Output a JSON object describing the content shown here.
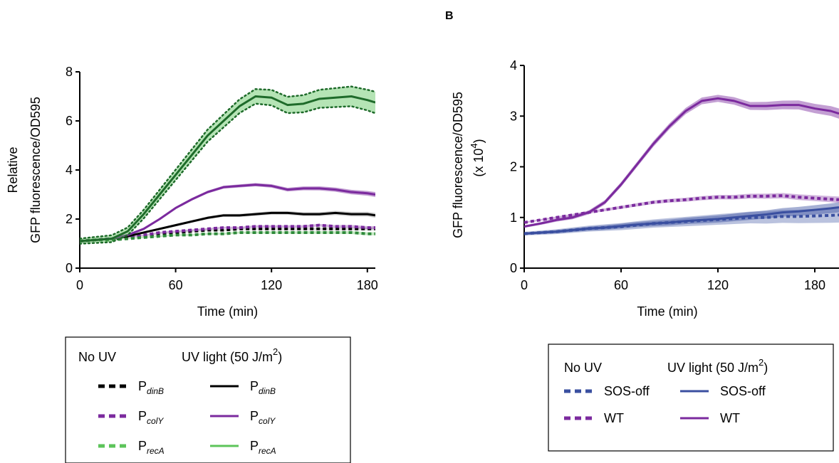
{
  "chart_data": [
    {
      "type": "line",
      "panel_label": "",
      "title": "",
      "xlabel": "Time (min)",
      "ylabel_lines": [
        "Relative",
        "GFP fluorescence/OD595"
      ],
      "xlim": [
        0,
        185
      ],
      "ylim": [
        0,
        8
      ],
      "xticks": [
        0,
        60,
        120,
        180
      ],
      "yticks": [
        0,
        2,
        4,
        6,
        8
      ],
      "grid": false,
      "legend": {
        "placement": "below",
        "col_headers": [
          {
            "text": "No UV",
            "sup": ""
          },
          {
            "text": "UV light (50 J/m",
            "sup": "2",
            "tail": ")"
          }
        ],
        "entries": [
          {
            "no_uv": {
              "base": "P",
              "sub": "dinB"
            },
            "uv": {
              "base": "P",
              "sub": "dinB"
            }
          },
          {
            "no_uv": {
              "base": "P",
              "sub": "colY"
            },
            "uv": {
              "base": "P",
              "sub": "colY"
            }
          },
          {
            "no_uv": {
              "base": "P",
              "sub": "recA"
            },
            "uv": {
              "base": "P",
              "sub": "recA"
            }
          }
        ]
      },
      "x": [
        0,
        10,
        20,
        30,
        40,
        50,
        60,
        70,
        80,
        90,
        100,
        110,
        120,
        130,
        140,
        150,
        160,
        170,
        180,
        185
      ],
      "series": [
        {
          "name": "PdinB",
          "condition": "No UV",
          "style": "dashed",
          "color": "#000000",
          "values": [
            1.1,
            1.15,
            1.2,
            1.25,
            1.3,
            1.4,
            1.45,
            1.5,
            1.55,
            1.55,
            1.6,
            1.6,
            1.6,
            1.6,
            1.6,
            1.6,
            1.6,
            1.6,
            1.6,
            1.6
          ]
        },
        {
          "name": "PcolY",
          "condition": "No UV",
          "style": "dashed",
          "color": "#7b2a9e",
          "values": [
            1.1,
            1.15,
            1.2,
            1.25,
            1.35,
            1.45,
            1.5,
            1.55,
            1.6,
            1.65,
            1.65,
            1.7,
            1.7,
            1.7,
            1.7,
            1.75,
            1.7,
            1.7,
            1.65,
            1.65
          ]
        },
        {
          "name": "PrecA",
          "condition": "No UV",
          "style": "dashed",
          "color": "#2f8a3b",
          "values": [
            1.1,
            1.15,
            1.15,
            1.2,
            1.25,
            1.3,
            1.35,
            1.35,
            1.4,
            1.4,
            1.45,
            1.45,
            1.45,
            1.45,
            1.45,
            1.45,
            1.45,
            1.45,
            1.4,
            1.4
          ]
        },
        {
          "name": "PdinB",
          "condition": "UV light",
          "style": "solid",
          "color": "#000000",
          "values": [
            1.1,
            1.15,
            1.2,
            1.3,
            1.45,
            1.6,
            1.75,
            1.9,
            2.05,
            2.15,
            2.15,
            2.2,
            2.25,
            2.25,
            2.2,
            2.2,
            2.25,
            2.2,
            2.2,
            2.15
          ]
        },
        {
          "name": "PcolY",
          "condition": "UV light",
          "style": "solid",
          "color": "#7b2a9e",
          "values": [
            1.1,
            1.15,
            1.2,
            1.35,
            1.6,
            2.0,
            2.45,
            2.8,
            3.1,
            3.3,
            3.35,
            3.4,
            3.35,
            3.2,
            3.25,
            3.25,
            3.2,
            3.1,
            3.05,
            3.0
          ]
        },
        {
          "name": "PrecA",
          "condition": "UV light",
          "style": "solid",
          "color": "#1e6b2a",
          "values": [
            1.1,
            1.15,
            1.2,
            1.5,
            2.2,
            3.0,
            3.8,
            4.6,
            5.4,
            6.0,
            6.6,
            7.0,
            6.95,
            6.65,
            6.7,
            6.9,
            6.95,
            7.0,
            6.85,
            6.75
          ]
        }
      ]
    },
    {
      "type": "line",
      "panel_label": "B",
      "title": "",
      "xlabel": "Time (min)",
      "ylabel_lines": [
        "GFP fluorescence/OD595",
        "(x 10",
        "4",
        ")"
      ],
      "xlim": [
        0,
        195
      ],
      "ylim": [
        0,
        4
      ],
      "xticks": [
        0,
        60,
        120,
        180
      ],
      "yticks": [
        0,
        1,
        2,
        3,
        4
      ],
      "grid": false,
      "legend": {
        "placement": "below",
        "col_headers": [
          {
            "text": "No UV",
            "sup": ""
          },
          {
            "text": "UV light (50 J/m",
            "sup": "2",
            "tail": ")"
          }
        ],
        "entries": [
          {
            "no_uv": "SOS-off",
            "uv": "SOS-off"
          },
          {
            "no_uv": "WT",
            "uv": "WT"
          }
        ]
      },
      "x": [
        0,
        10,
        20,
        30,
        40,
        50,
        60,
        70,
        80,
        90,
        100,
        110,
        120,
        130,
        140,
        150,
        160,
        170,
        180,
        190,
        195
      ],
      "series": [
        {
          "name": "SOS-off",
          "condition": "No UV",
          "style": "dashed",
          "color": "#3a4fa0",
          "values": [
            0.68,
            0.7,
            0.72,
            0.75,
            0.78,
            0.8,
            0.82,
            0.85,
            0.88,
            0.9,
            0.92,
            0.94,
            0.96,
            0.98,
            1.0,
            1.0,
            1.02,
            1.02,
            1.03,
            1.04,
            1.05
          ]
        },
        {
          "name": "WT",
          "condition": "No UV",
          "style": "dashed",
          "color": "#7b2a9e",
          "values": [
            0.9,
            0.95,
            1.0,
            1.05,
            1.1,
            1.15,
            1.2,
            1.25,
            1.3,
            1.33,
            1.35,
            1.38,
            1.4,
            1.4,
            1.42,
            1.42,
            1.43,
            1.4,
            1.38,
            1.36,
            1.35
          ]
        },
        {
          "name": "SOS-off",
          "condition": "UV light",
          "style": "solid",
          "color": "#3a4fa0",
          "values": [
            0.68,
            0.7,
            0.72,
            0.75,
            0.78,
            0.8,
            0.83,
            0.86,
            0.88,
            0.9,
            0.93,
            0.95,
            0.97,
            1.0,
            1.03,
            1.06,
            1.1,
            1.12,
            1.15,
            1.18,
            1.2
          ]
        },
        {
          "name": "WT",
          "condition": "UV light",
          "style": "solid",
          "color": "#7b2a9e",
          "values": [
            0.82,
            0.88,
            0.95,
            1.0,
            1.1,
            1.3,
            1.65,
            2.05,
            2.45,
            2.8,
            3.1,
            3.3,
            3.35,
            3.3,
            3.2,
            3.2,
            3.22,
            3.22,
            3.15,
            3.1,
            3.05
          ]
        }
      ]
    }
  ]
}
